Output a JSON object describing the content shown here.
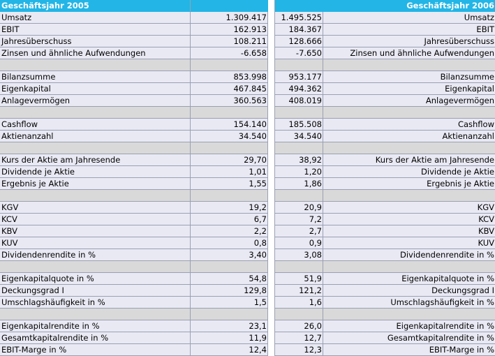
{
  "header": {
    "left_title": "Geschäftsjahr 2005",
    "right_title": "Geschäftsjahr 2006"
  },
  "rows": [
    {
      "label": "Umsatz",
      "v2005": "1.309.417",
      "v2006": "1.495.525"
    },
    {
      "label": "EBIT",
      "v2005": "162.913",
      "v2006": "184.367"
    },
    {
      "label": "Jahresüberschuss",
      "v2005": "108.211",
      "v2006": "128.666"
    },
    {
      "label": "Zinsen und ähnliche Aufwendungen",
      "v2005": "-6.658",
      "v2006": "-7.650"
    },
    {
      "sep": true
    },
    {
      "label": "Bilanzsumme",
      "v2005": "853.998",
      "v2006": "953.177"
    },
    {
      "label": "Eigenkapital",
      "v2005": "467.845",
      "v2006": "494.362"
    },
    {
      "label": "Anlagevermögen",
      "v2005": "360.563",
      "v2006": "408.019"
    },
    {
      "sep": true
    },
    {
      "label": "Cashflow",
      "v2005": "154.140",
      "v2006": "185.508"
    },
    {
      "label": "Aktienanzahl",
      "v2005": "34.540",
      "v2006": "34.540"
    },
    {
      "sep": true
    },
    {
      "label": "Kurs der Aktie am Jahresende",
      "v2005": "29,70",
      "v2006": "38,92"
    },
    {
      "label": "Dividende je Aktie",
      "v2005": "1,01",
      "v2006": "1,20"
    },
    {
      "label": "Ergebnis je Aktie",
      "v2005": "1,55",
      "v2006": "1,86"
    },
    {
      "sep": true
    },
    {
      "label": "KGV",
      "v2005": "19,2",
      "v2006": "20,9"
    },
    {
      "label": "KCV",
      "v2005": "6,7",
      "v2006": "7,2"
    },
    {
      "label": "KBV",
      "v2005": "2,2",
      "v2006": "2,7"
    },
    {
      "label": "KUV",
      "v2005": "0,8",
      "v2006": "0,9"
    },
    {
      "label": "Dividendenrendite in %",
      "v2005": "3,40",
      "v2006": "3,08"
    },
    {
      "sep": true
    },
    {
      "label": "Eigenkapitalquote in %",
      "v2005": "54,8",
      "v2006": "51,9"
    },
    {
      "label": "Deckungsgrad I",
      "v2005": "129,8",
      "v2006": "121,2"
    },
    {
      "label": "Umschlagshäufigkeit in %",
      "v2005": "1,5",
      "v2006": "1,6"
    },
    {
      "sep": true
    },
    {
      "label": "Eigenkapitalrendite in %",
      "v2005": "23,1",
      "v2006": "26,0"
    },
    {
      "label": "Gesamtkapitalrendite in %",
      "v2005": "11,9",
      "v2006": "12,7"
    },
    {
      "label": "EBIT-Marge in %",
      "v2005": "12,4",
      "v2006": "12,3"
    }
  ]
}
